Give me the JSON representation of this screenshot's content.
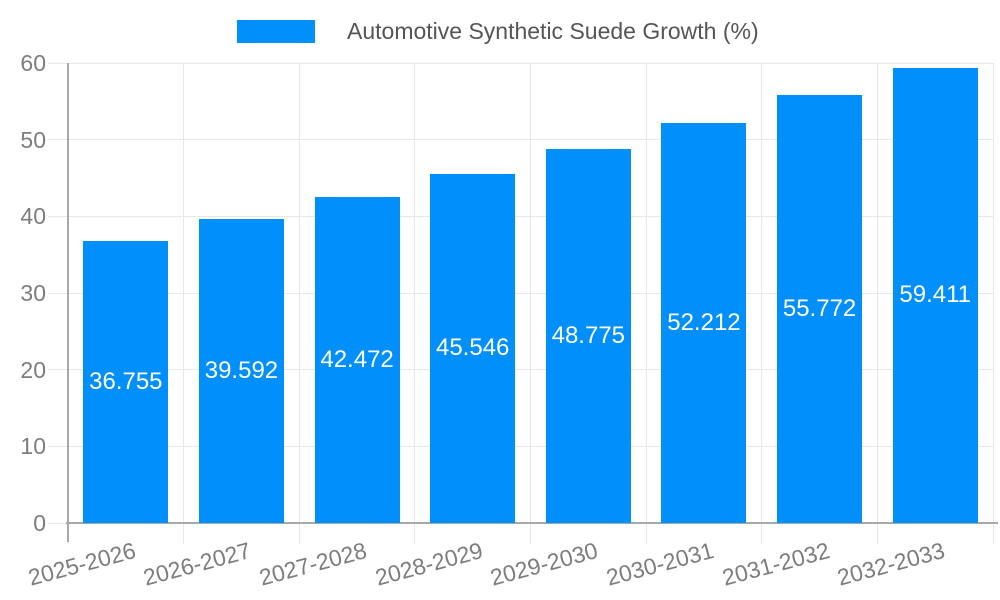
{
  "page": {
    "background": "#ffffff"
  },
  "legend": {
    "label": "Automotive Synthetic Suede Growth (%)",
    "swatch_color": "#008FFB",
    "text_color": "#555555"
  },
  "chart_data": {
    "type": "bar",
    "title": "Automotive Synthetic Suede Growth (%)",
    "legend_position": "top",
    "categories": [
      "2025-2026",
      "2026-2027",
      "2027-2028",
      "2028-2029",
      "2029-2030",
      "2030-2031",
      "2031-2032",
      "2032-2033"
    ],
    "values": [
      36.755,
      39.592,
      42.472,
      45.546,
      48.775,
      52.212,
      55.772,
      59.411
    ],
    "value_labels": [
      "36.755",
      "39.592",
      "42.472",
      "45.546",
      "48.775",
      "52.212",
      "55.772",
      "59.411"
    ],
    "xlabel": "",
    "ylabel": "",
    "ylim": [
      0,
      60
    ],
    "yticks": [
      0,
      10,
      20,
      30,
      40,
      50,
      60
    ],
    "grid": true,
    "x_label_rotation_deg": -15,
    "colors": {
      "bar": "#008FFB",
      "data_label": "#ffffff",
      "axis_text": "#7d7d7d",
      "grid": "#e8e8e8",
      "axis_line": "#a8a8a8"
    }
  }
}
